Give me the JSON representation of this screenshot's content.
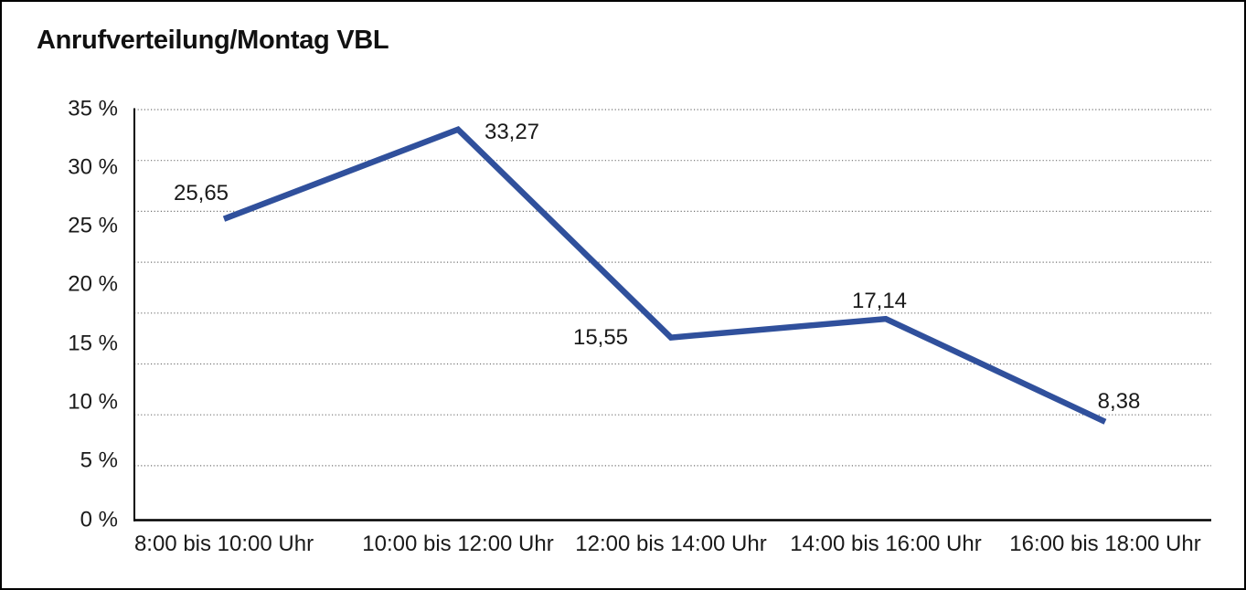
{
  "chart_data": {
    "type": "line",
    "title": "Anrufverteilung/Montag VBL",
    "categories": [
      "8:00 bis 10:00 Uhr",
      "10:00 bis 12:00 Uhr",
      "12:00 bis 14:00 Uhr",
      "14:00 bis 16:00 Uhr",
      "16:00 bis 18:00 Uhr"
    ],
    "series": [
      {
        "name": "Anrufverteilung Montag VBL",
        "values": [
          25.65,
          33.27,
          15.55,
          17.14,
          8.38
        ],
        "value_labels": [
          "25,65",
          "33,27",
          "15,55",
          "17,14",
          "8,38"
        ]
      }
    ],
    "y_tick_values": [
      35,
      30,
      25,
      20,
      15,
      10,
      5,
      0
    ],
    "y_tick_labels": [
      "35 %",
      "30 %",
      "25 %",
      "20 %",
      "15 %",
      "10 %",
      "5 %",
      "0 %"
    ],
    "ylim": [
      0,
      35
    ],
    "xlabel": "",
    "ylabel": "",
    "grid": "horizontal-dotted",
    "legend": "none",
    "decimal_separator": ","
  },
  "colors": {
    "series_line": "#30509C",
    "axis": "#000000",
    "gridline": "#737373",
    "text": "#1a1a1a",
    "background": "#ffffff",
    "frame_border": "#000000"
  }
}
